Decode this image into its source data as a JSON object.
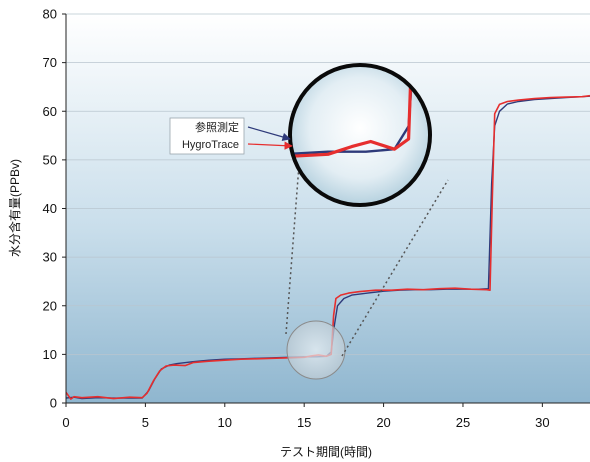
{
  "chart_data": {
    "type": "line",
    "xlabel": "テスト期間(時間)",
    "ylabel": "水分含有量(PPBv)",
    "xlim": [
      0,
      33
    ],
    "ylim": [
      0,
      80
    ],
    "x_ticks": [
      "0",
      "5",
      "10",
      "15",
      "20",
      "25",
      "30"
    ],
    "y_ticks": [
      "0",
      "10",
      "20",
      "30",
      "40",
      "50",
      "60",
      "70",
      "80"
    ],
    "grid": "horizontal",
    "background": "vertical gradient, white at top to light steel blue at bottom",
    "series": [
      {
        "name": "参照測定",
        "color": "#2e3a7a",
        "x": [
          0,
          0.5,
          1,
          2,
          3,
          4,
          4.8,
          5.2,
          5.6,
          6,
          6.5,
          7,
          8,
          9,
          10,
          11,
          12,
          13,
          14,
          15,
          15.8,
          16.4,
          16.7,
          16.9,
          17.1,
          17.5,
          18,
          19,
          20,
          21,
          22,
          23,
          24,
          25,
          26,
          26.6,
          26.8,
          27,
          27.3,
          27.8,
          28.5,
          29.5,
          30.5,
          31.5,
          32.5,
          33
        ],
        "y": [
          1,
          1.2,
          0.9,
          1.1,
          1,
          1,
          1,
          2.5,
          5,
          7,
          7.8,
          8.1,
          8.5,
          8.8,
          9,
          9.1,
          9.2,
          9.3,
          9.4,
          9.5,
          9.5,
          9.6,
          10.5,
          16,
          20,
          21.5,
          22.2,
          22.6,
          23,
          23.2,
          23.3,
          23.3,
          23.4,
          23.4,
          23.4,
          23.5,
          45,
          57,
          60,
          61.5,
          62,
          62.4,
          62.6,
          62.8,
          63,
          63.1
        ]
      },
      {
        "name": "HygroTrace",
        "color": "#e62e2e",
        "x": [
          0,
          0.3,
          0.5,
          1,
          2,
          3,
          4,
          4.8,
          5.1,
          5.5,
          5.9,
          6.3,
          6.8,
          7.5,
          8,
          9,
          10,
          11,
          12,
          13,
          14,
          15,
          15.5,
          15.9,
          16.4,
          16.7,
          16.85,
          17,
          17.3,
          17.8,
          18.5,
          19.5,
          20.5,
          21.5,
          22.5,
          23.5,
          24.5,
          25.5,
          26.5,
          26.7,
          26.85,
          27,
          27.3,
          27.8,
          28.5,
          29.5,
          30.5,
          31.5,
          32.5,
          33
        ],
        "y": [
          2.2,
          0.8,
          1.3,
          1.1,
          1.3,
          0.9,
          1.2,
          1.1,
          2,
          4.5,
          6.6,
          7.6,
          7.8,
          7.7,
          8.3,
          8.6,
          8.8,
          9,
          9.1,
          9.2,
          9.3,
          9.4,
          9.7,
          9.9,
          9.6,
          10,
          18,
          21.5,
          22.2,
          22.6,
          22.9,
          23.2,
          23.2,
          23.4,
          23.3,
          23.5,
          23.6,
          23.4,
          23.3,
          23.2,
          42,
          59.5,
          61.4,
          62,
          62.3,
          62.6,
          62.8,
          62.9,
          63,
          63.2
        ]
      }
    ],
    "inset": {
      "type": "magnified-view",
      "source_center": [
        15.8,
        10
      ],
      "legend": [
        {
          "label": "参照測定",
          "color": "#2e3a7a"
        },
        {
          "label": "HygroTrace",
          "color": "#e62e2e"
        }
      ]
    }
  }
}
